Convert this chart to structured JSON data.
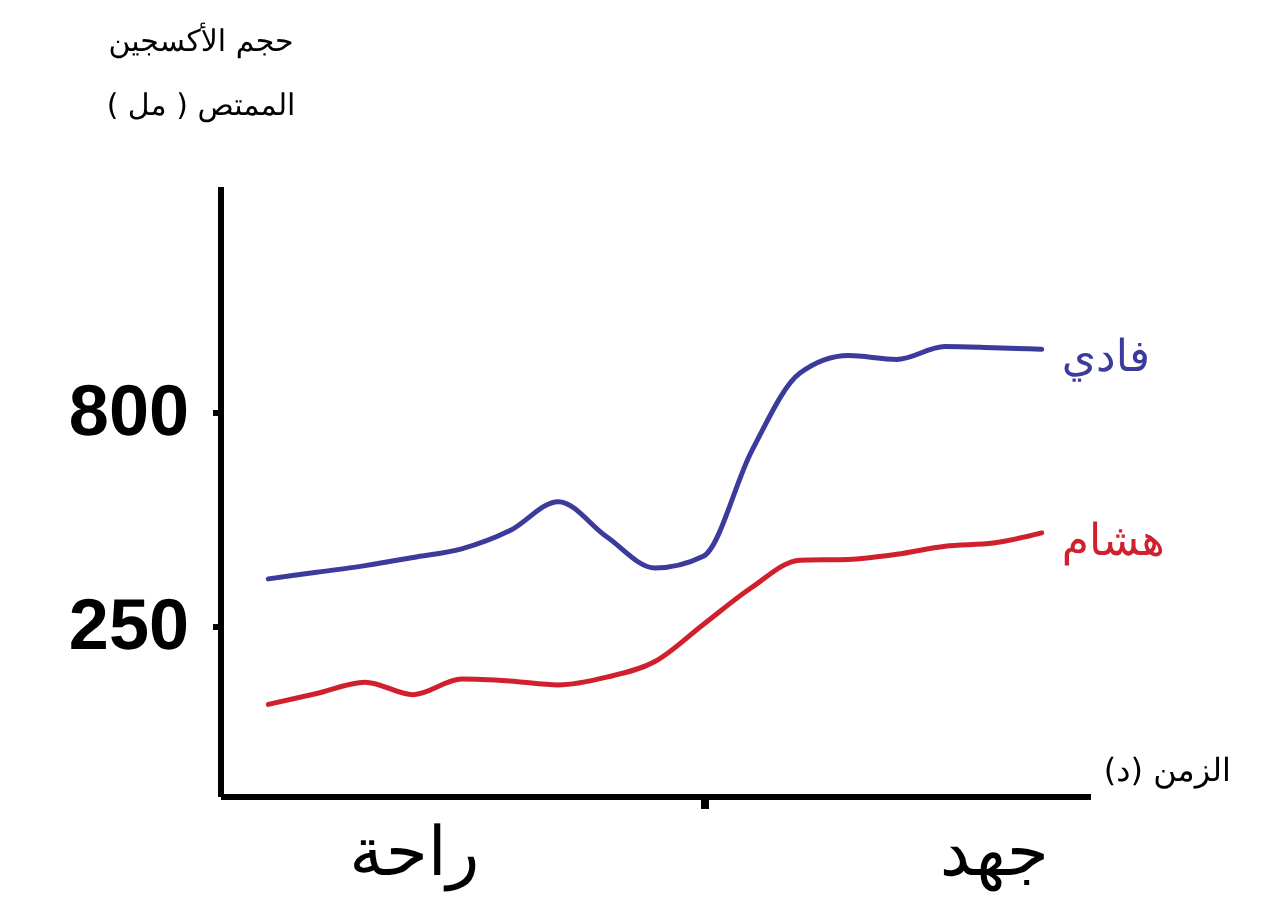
{
  "chart_data": {
    "type": "line",
    "ylabel": "حجم الأكسجين الممتص ( مل )",
    "xlabel": "الزمن (د)",
    "categories": [
      null,
      null,
      null,
      "راحة",
      null,
      null,
      null,
      null,
      null,
      null,
      null,
      null,
      null,
      null,
      null,
      "جهد",
      null
    ],
    "ylim": [
      -185,
      1380
    ],
    "yticks": [
      250,
      800
    ],
    "grid": false,
    "legend": false,
    "marker": "none",
    "line_style": "solid",
    "series": [
      {
        "name": "فادي",
        "color": "#3b3b9b",
        "values": [
          372,
          389,
          406,
          427,
          449,
          496,
          570,
          480,
          400,
          430,
          700,
          900,
          945,
          935,
          968,
          965,
          961
        ]
      },
      {
        "name": "هشام",
        "color": "#d0202e",
        "values": [
          50,
          78,
          107,
          75,
          115,
          110,
          100,
          120,
          160,
          255,
          350,
          420,
          422,
          435,
          456,
          464,
          490
        ]
      }
    ]
  }
}
